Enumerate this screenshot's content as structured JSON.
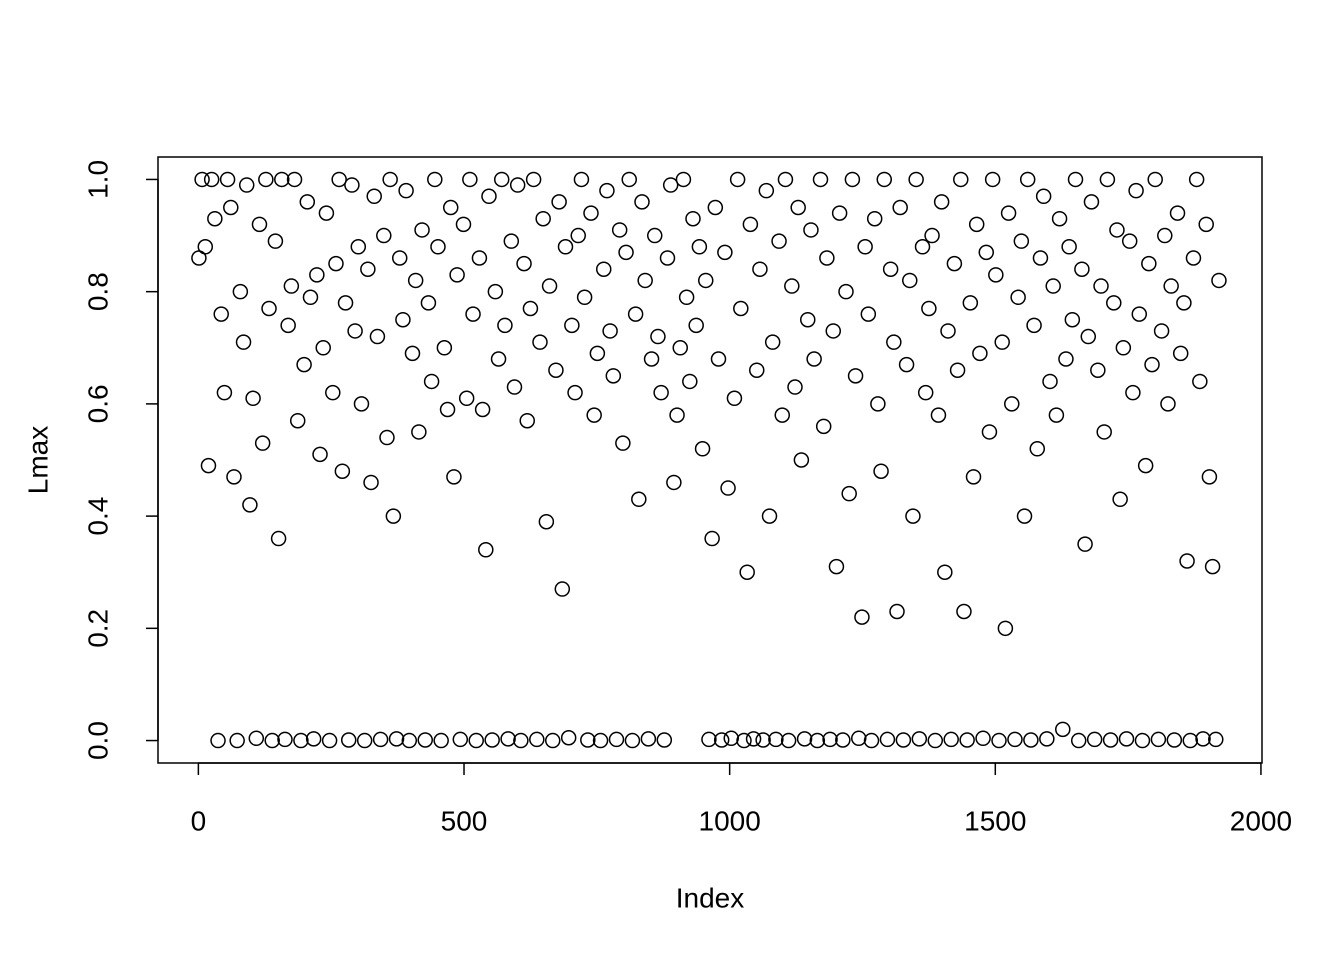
{
  "chart_data": {
    "type": "scatter",
    "xlabel": "Index",
    "ylabel": "Lmax",
    "color": "#000000",
    "xlim": [
      -76,
      2002
    ],
    "ylim": [
      -0.04,
      1.04
    ],
    "xticks": [
      0,
      500,
      1000,
      1500,
      2000
    ],
    "yticks": [
      {
        "value": 0,
        "label": "0.0"
      },
      {
        "value": 0.2,
        "label": "0.2"
      },
      {
        "value": 0.4,
        "label": "0.4"
      },
      {
        "value": 0.6,
        "label": "0.6"
      },
      {
        "value": 0.8,
        "label": "0.8"
      },
      {
        "value": 1,
        "label": "1.0"
      }
    ],
    "x": [
      1,
      7,
      13,
      19,
      25,
      31,
      37,
      43,
      49,
      55,
      61,
      67,
      73,
      79,
      85,
      91,
      97,
      103,
      109,
      115,
      121,
      127,
      133,
      139,
      145,
      151,
      157,
      163,
      169,
      175,
      181,
      187,
      193,
      199,
      205,
      211,
      217,
      223,
      229,
      235,
      241,
      247,
      253,
      259,
      265,
      271,
      277,
      283,
      289,
      295,
      301,
      307,
      313,
      319,
      325,
      331,
      337,
      343,
      349,
      355,
      361,
      367,
      373,
      379,
      385,
      391,
      397,
      403,
      409,
      415,
      421,
      427,
      433,
      439,
      445,
      451,
      457,
      463,
      469,
      475,
      481,
      487,
      493,
      499,
      505,
      511,
      517,
      523,
      529,
      535,
      541,
      547,
      553,
      559,
      565,
      571,
      577,
      583,
      589,
      595,
      601,
      607,
      613,
      619,
      625,
      631,
      637,
      643,
      649,
      655,
      661,
      667,
      673,
      679,
      685,
      691,
      697,
      703,
      709,
      715,
      721,
      727,
      733,
      739,
      745,
      751,
      757,
      763,
      769,
      775,
      781,
      787,
      793,
      799,
      805,
      811,
      817,
      823,
      829,
      835,
      841,
      847,
      853,
      859,
      865,
      871,
      877,
      883,
      889,
      895,
      901,
      907,
      913,
      919,
      925,
      931,
      937,
      943,
      949,
      955,
      961,
      967,
      973,
      979,
      985,
      991,
      997,
      1003,
      1009,
      1015,
      1021,
      1027,
      1033,
      1039,
      1045,
      1051,
      1057,
      1063,
      1069,
      1075,
      1081,
      1087,
      1093,
      1099,
      1105,
      1111,
      1117,
      1123,
      1129,
      1135,
      1141,
      1147,
      1153,
      1159,
      1165,
      1171,
      1177,
      1183,
      1189,
      1195,
      1201,
      1207,
      1213,
      1219,
      1225,
      1231,
      1237,
      1243,
      1249,
      1255,
      1261,
      1267,
      1273,
      1279,
      1285,
      1291,
      1297,
      1303,
      1309,
      1315,
      1321,
      1327,
      1333,
      1339,
      1345,
      1351,
      1357,
      1363,
      1369,
      1375,
      1381,
      1387,
      1393,
      1399,
      1405,
      1411,
      1417,
      1423,
      1429,
      1435,
      1441,
      1447,
      1453,
      1459,
      1465,
      1471,
      1477,
      1483,
      1489,
      1495,
      1501,
      1507,
      1513,
      1519,
      1525,
      1531,
      1537,
      1543,
      1549,
      1555,
      1561,
      1567,
      1573,
      1579,
      1585,
      1591,
      1597,
      1603,
      1609,
      1615,
      1621,
      1627,
      1633,
      1639,
      1645,
      1651,
      1657,
      1663,
      1669,
      1675,
      1681,
      1687,
      1693,
      1699,
      1705,
      1711,
      1717,
      1723,
      1729,
      1735,
      1741,
      1747,
      1753,
      1759,
      1765,
      1771,
      1777,
      1783,
      1789,
      1795,
      1801,
      1807,
      1813,
      1819,
      1825,
      1831,
      1837,
      1843,
      1849,
      1855,
      1861,
      1867,
      1873,
      1879,
      1885,
      1891,
      1897,
      1903,
      1909,
      1915,
      1921
    ],
    "y": [
      0.86,
      1,
      0.88,
      0.49,
      1,
      0.93,
      0,
      0.76,
      0.62,
      1,
      0.95,
      0.47,
      0,
      0.8,
      0.71,
      0.99,
      0.42,
      0.61,
      0.004,
      0.92,
      0.53,
      1,
      0.77,
      0,
      0.89,
      0.36,
      1,
      0.002,
      0.74,
      0.81,
      1,
      0.57,
      0,
      0.67,
      0.96,
      0.79,
      0.003,
      0.83,
      0.51,
      0.7,
      0.94,
      0,
      0.62,
      0.85,
      1,
      0.48,
      0.78,
      0.001,
      0.99,
      0.73,
      0.88,
      0.6,
      0,
      0.84,
      0.46,
      0.97,
      0.72,
      0.002,
      0.9,
      0.54,
      1,
      0.4,
      0.003,
      0.86,
      0.75,
      0.98,
      0,
      0.69,
      0.82,
      0.55,
      0.91,
      0.001,
      0.78,
      0.64,
      1,
      0.88,
      0,
      0.7,
      0.59,
      0.95,
      0.47,
      0.83,
      0.002,
      0.92,
      0.61,
      1,
      0.76,
      0,
      0.86,
      0.59,
      0.34,
      0.97,
      0.001,
      0.8,
      0.68,
      1,
      0.74,
      0.003,
      0.89,
      0.63,
      0.99,
      0,
      0.85,
      0.57,
      0.77,
      1,
      0.002,
      0.71,
      0.93,
      0.39,
      0.81,
      0,
      0.66,
      0.96,
      0.27,
      0.88,
      0.005,
      0.74,
      0.62,
      0.9,
      1,
      0.79,
      0.001,
      0.94,
      0.58,
      0.69,
      0,
      0.84,
      0.98,
      0.73,
      0.65,
      0.002,
      0.91,
      0.53,
      0.87,
      1,
      0,
      0.76,
      0.43,
      0.96,
      0.82,
      0.003,
      0.68,
      0.9,
      0.72,
      0.62,
      0.001,
      0.86,
      0.99,
      0.46,
      0.58,
      0.7,
      1,
      0.79,
      0.64,
      0.93,
      0.74,
      0.88,
      0.52,
      0.82,
      0.002,
      0.36,
      0.95,
      0.68,
      0.001,
      0.87,
      0.45,
      0.004,
      0.61,
      1,
      0.77,
      0,
      0.3,
      0.92,
      0.003,
      0.66,
      0.84,
      0.001,
      0.98,
      0.4,
      0.71,
      0.002,
      0.89,
      0.58,
      1,
      0,
      0.81,
      0.63,
      0.95,
      0.5,
      0.003,
      0.75,
      0.91,
      0.68,
      0,
      1,
      0.56,
      0.86,
      0.002,
      0.73,
      0.31,
      0.94,
      0.001,
      0.8,
      0.44,
      1,
      0.65,
      0.004,
      0.22,
      0.88,
      0.76,
      0,
      0.93,
      0.6,
      0.48,
      1,
      0.002,
      0.84,
      0.71,
      0.23,
      0.95,
      0.001,
      0.67,
      0.82,
      0.4,
      1,
      0.003,
      0.88,
      0.62,
      0.77,
      0.9,
      0,
      0.58,
      0.96,
      0.3,
      0.73,
      0.002,
      0.85,
      0.66,
      1,
      0.23,
      0.001,
      0.78,
      0.47,
      0.92,
      0.69,
      0.004,
      0.87,
      0.55,
      1,
      0.83,
      0,
      0.71,
      0.2,
      0.94,
      0.6,
      0.002,
      0.79,
      0.89,
      0.4,
      1,
      0.001,
      0.74,
      0.52,
      0.86,
      0.97,
      0.003,
      0.64,
      0.81,
      0.58,
      0.93,
      0.02,
      0.68,
      0.88,
      0.75,
      1,
      0,
      0.84,
      0.35,
      0.72,
      0.96,
      0.002,
      0.66,
      0.81,
      0.55,
      1,
      0.001,
      0.78,
      0.91,
      0.43,
      0.7,
      0.003,
      0.89,
      0.62,
      0.98,
      0.76,
      0,
      0.49,
      0.85,
      0.67,
      1,
      0.002,
      0.73,
      0.9,
      0.6,
      0.81,
      0.001,
      0.94,
      0.69,
      0.78,
      0.32,
      0,
      0.86,
      1,
      0.64,
      0.003,
      0.92,
      0.47,
      0.31,
      0.002,
      0.82
    ]
  }
}
